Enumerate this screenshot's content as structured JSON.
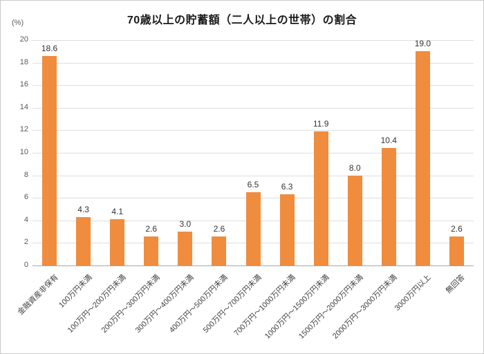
{
  "chart": {
    "title": "70歳以上の貯蓄額（二人以上の世帯）の割合",
    "y_axis_unit": "(%)"
  },
  "chart_data": {
    "type": "bar",
    "title": "70歳以上の貯蓄額（二人以上の世帯）の割合",
    "categories": [
      "金融資産非保有",
      "100万円未満",
      "100万円～200万円未満",
      "200万円～300万円未満",
      "300万円～400万円未満",
      "400万円～500万円未満",
      "500万円～700万円未満",
      "700万円～1000万円未満",
      "1000万円～1500万円未満",
      "1500万円～2000万円未満",
      "2000万円～3000万円未満",
      "3000万円以上",
      "無回答"
    ],
    "values": [
      18.6,
      4.3,
      4.1,
      2.6,
      3.0,
      2.6,
      6.5,
      6.3,
      11.9,
      8.0,
      10.4,
      19.0,
      2.6
    ],
    "xlabel": "",
    "ylabel": "(%)",
    "ylim": [
      0,
      20
    ],
    "ytick_step": 2,
    "grid": true,
    "legend": "none",
    "bar_color": "#F08C3E"
  }
}
